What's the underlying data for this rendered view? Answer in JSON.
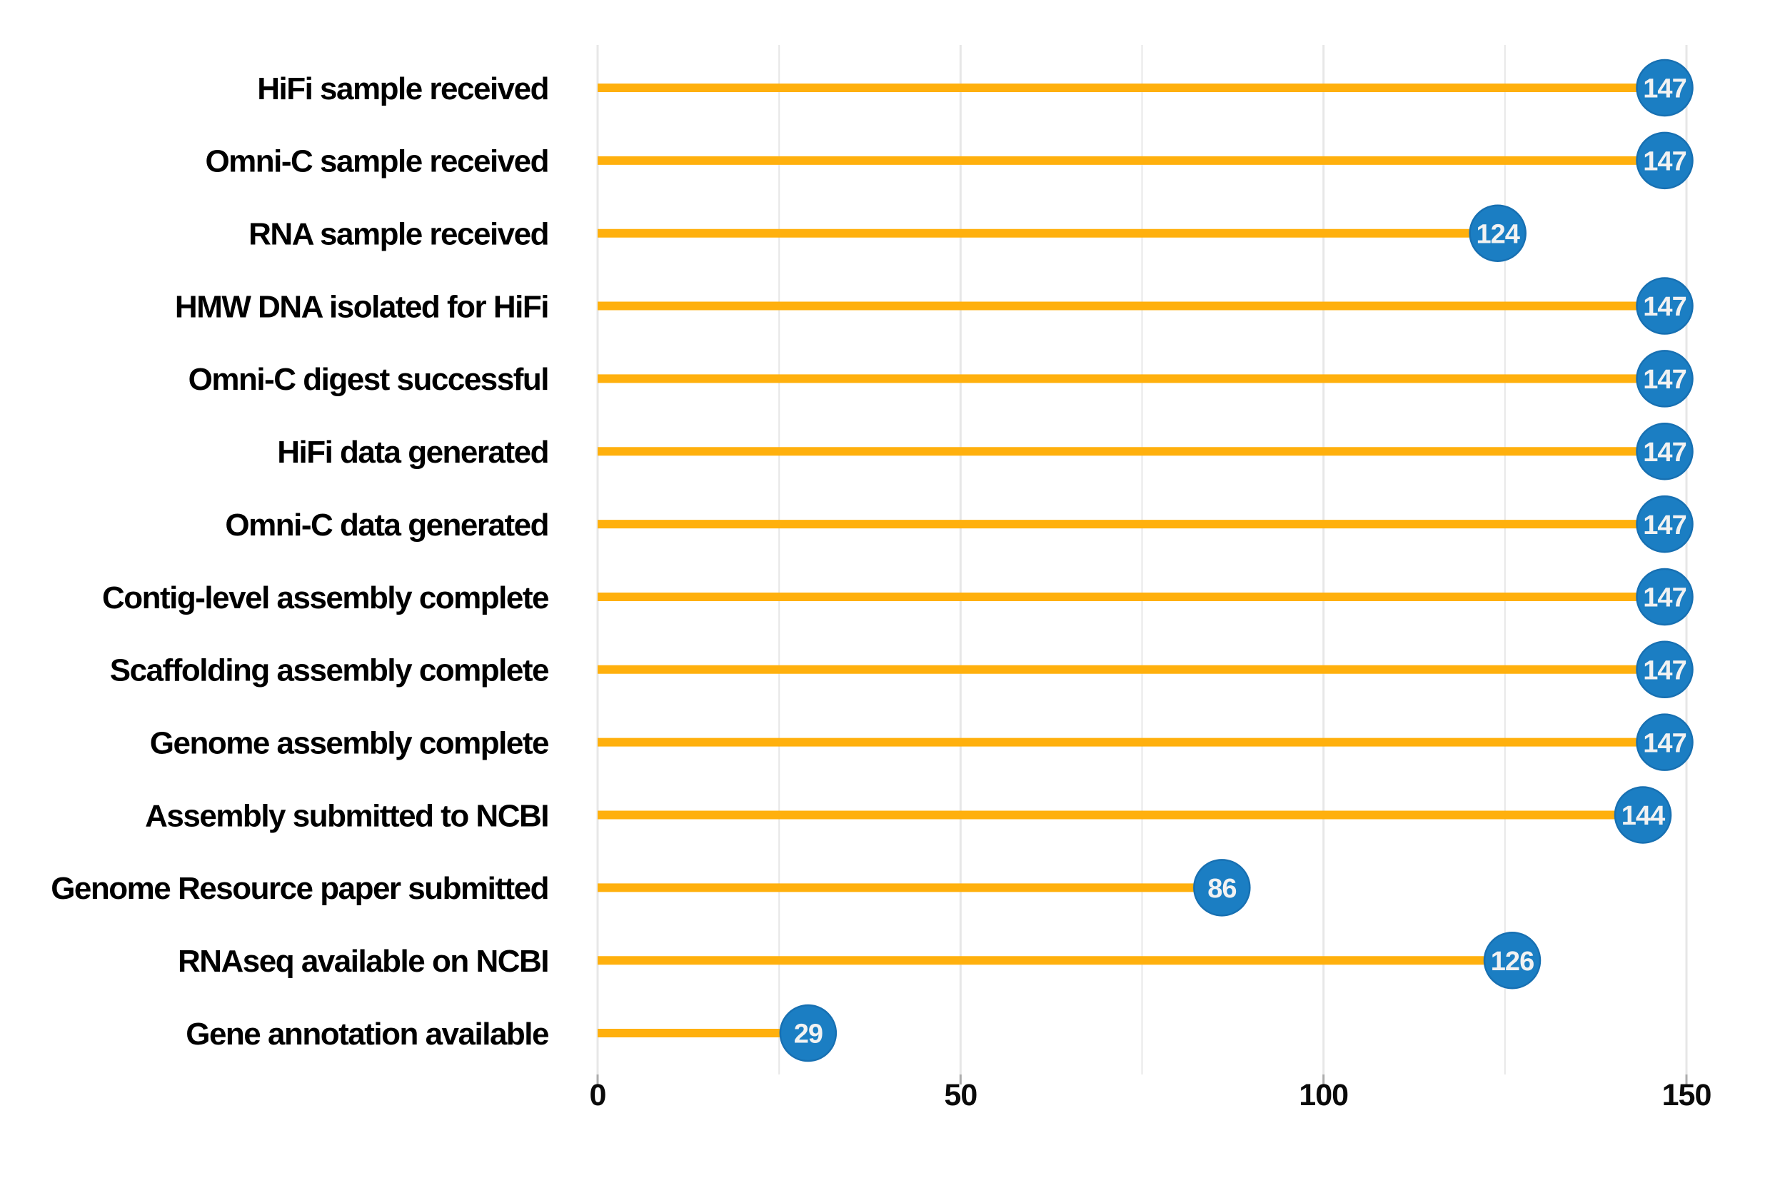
{
  "chart_data": {
    "type": "bar",
    "variant": "horizontal-lollipop",
    "title": "",
    "xlabel": "",
    "ylabel": "",
    "categories": [
      "HiFi sample received",
      "Omni-C sample received",
      "RNA sample received",
      "HMW DNA isolated for HiFi",
      "Omni-C digest successful",
      "HiFi data generated",
      "Omni-C data generated",
      "Contig-level assembly complete",
      "Scaffolding assembly complete",
      "Genome assembly complete",
      "Assembly submitted to NCBI",
      "Genome Resource paper submitted",
      "RNAseq available on NCBI",
      "Gene annotation available"
    ],
    "values": [
      147,
      147,
      124,
      147,
      147,
      147,
      147,
      147,
      147,
      147,
      144,
      86,
      126,
      29
    ],
    "xlim": [
      0,
      150
    ],
    "x_ticks": [
      0,
      50,
      100,
      150
    ],
    "x_tick_labels": [
      "0",
      "50",
      "100",
      "150"
    ],
    "x_minor_gridlines": [
      25,
      75,
      125
    ],
    "grid": "vertical-on",
    "legend": "none",
    "data_labels": "inside-marker",
    "colors": {
      "stem_line": "#FFB00D",
      "marker_fill": "#1B7EC3",
      "marker_outline": "#1770B2",
      "marker_label": "#F2F2F2",
      "gridline": "#E7E7E7",
      "tick_mark": "#ADADAD",
      "tick_label": "#0A0A0A",
      "category_label": "#000000",
      "background": "#FFFFFF"
    }
  }
}
